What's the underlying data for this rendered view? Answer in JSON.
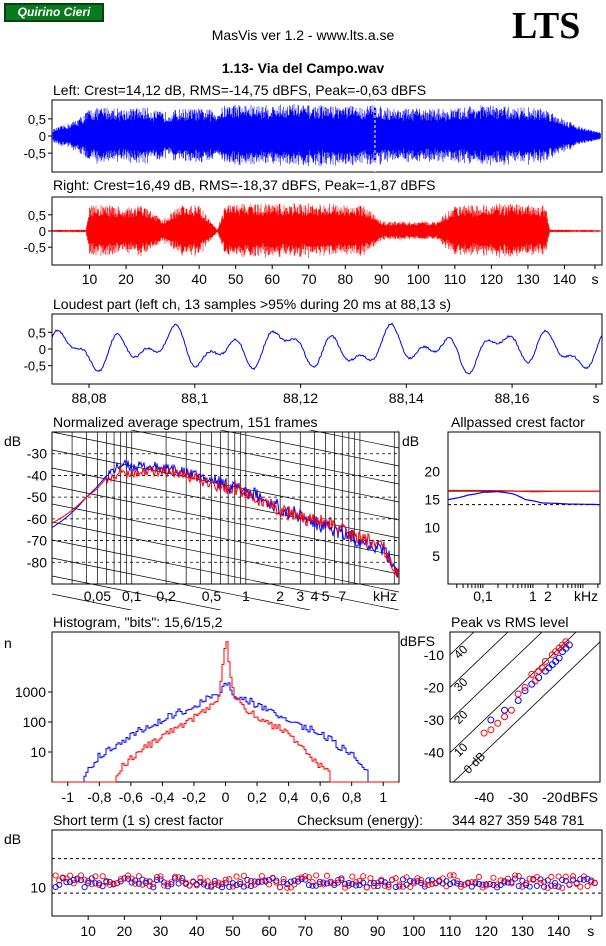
{
  "header": {
    "badge": "Quirino Cieri",
    "app_title": "MasVis ver 1.2 - www.lts.a.se",
    "logo": "LTS",
    "track": "1.13- Via del Campo.wav"
  },
  "colors": {
    "left": "#0000ff",
    "right": "#ff0000",
    "frame": "#000000"
  },
  "chart_data": [
    {
      "id": "left_waveform",
      "type": "area",
      "title": "Left: Crest=14,12 dB, RMS=-14,75 dBFS, Peak=-0,63 dBFS",
      "yticks": [
        "0,5",
        "0",
        "-0,5"
      ],
      "ylim": [
        -1,
        1
      ],
      "envelope_seconds": [
        0,
        5,
        8,
        10,
        15,
        20,
        25,
        30,
        35,
        40,
        45,
        47,
        50,
        55,
        60,
        65,
        70,
        75,
        80,
        85,
        88,
        90,
        95,
        100,
        105,
        110,
        115,
        120,
        125,
        130,
        135,
        140,
        145,
        150
      ],
      "envelope_peak": [
        0.2,
        0.4,
        0.6,
        0.8,
        0.85,
        0.8,
        0.85,
        0.7,
        0.8,
        0.8,
        0.75,
        0.9,
        0.95,
        0.9,
        0.9,
        0.95,
        0.9,
        0.9,
        0.9,
        0.85,
        0.95,
        0.85,
        0.8,
        0.8,
        0.8,
        0.8,
        0.9,
        0.9,
        0.85,
        0.85,
        0.8,
        0.5,
        0.25,
        0.1
      ],
      "series": [
        {
          "name": "Left",
          "color": "#0000ff"
        }
      ],
      "marker_at_s": 88.13
    },
    {
      "id": "right_waveform",
      "type": "area",
      "title": "Right: Crest=16,49 dB, RMS=-18,37 dBFS, Peak=-1,87 dBFS",
      "yticks": [
        "0,5",
        "0",
        "-0,5"
      ],
      "ylim": [
        -1,
        1
      ],
      "xticks": [
        "10",
        "20",
        "30",
        "40",
        "50",
        "60",
        "70",
        "80",
        "90",
        "100",
        "110",
        "120",
        "130",
        "140",
        "s"
      ],
      "envelope_seconds": [
        0,
        9,
        10,
        15,
        20,
        25,
        30,
        35,
        40,
        45,
        47,
        50,
        55,
        60,
        65,
        70,
        75,
        80,
        85,
        90,
        95,
        100,
        105,
        110,
        115,
        120,
        125,
        130,
        135,
        136,
        150
      ],
      "envelope_peak": [
        0.04,
        0.04,
        0.8,
        0.8,
        0.75,
        0.8,
        0.35,
        0.8,
        0.8,
        0.04,
        0.8,
        0.85,
        0.85,
        0.85,
        0.85,
        0.85,
        0.85,
        0.8,
        0.8,
        0.3,
        0.3,
        0.3,
        0.3,
        0.8,
        0.8,
        0.85,
        0.85,
        0.8,
        0.8,
        0.05,
        0.03
      ],
      "series": [
        {
          "name": "Right",
          "color": "#ff0000"
        }
      ]
    },
    {
      "id": "loudest_part",
      "type": "line",
      "title": "Loudest part (left  ch, 13 samples >95% during 20 ms at 88,13 s)",
      "yticks": [
        "0,5",
        "0",
        "-0,5"
      ],
      "ylim": [
        -1,
        1
      ],
      "xticks": [
        "88,08",
        "88,1",
        "88,12",
        "88,14",
        "88,16",
        "s"
      ],
      "xlim": [
        88.073,
        88.177
      ],
      "series": [
        {
          "name": "Left",
          "color": "#0000ff"
        }
      ]
    },
    {
      "id": "spectrum",
      "type": "line",
      "title": "Normalized average spectrum, 151 frames",
      "ylabel": "dB",
      "yticks": [
        "-30",
        "-40",
        "-50",
        "-60",
        "-70",
        "-80"
      ],
      "ylim": [
        -90,
        -20
      ],
      "xticks": [
        "0,05",
        "0,1",
        "0,2",
        "0,5",
        "1",
        "2",
        "3",
        "4",
        "5",
        "7",
        "kHz"
      ],
      "xlim_khz": [
        0.02,
        22
      ],
      "left_db": [
        [
          0.02,
          -64
        ],
        [
          0.03,
          -57
        ],
        [
          0.04,
          -50
        ],
        [
          0.05,
          -45
        ],
        [
          0.06,
          -40
        ],
        [
          0.08,
          -35
        ],
        [
          0.1,
          -36
        ],
        [
          0.15,
          -36
        ],
        [
          0.2,
          -37
        ],
        [
          0.3,
          -39
        ],
        [
          0.4,
          -41
        ],
        [
          0.5,
          -42
        ],
        [
          0.7,
          -45
        ],
        [
          1,
          -47
        ],
        [
          1.5,
          -52
        ],
        [
          2,
          -55
        ],
        [
          3,
          -59
        ],
        [
          4,
          -62
        ],
        [
          5,
          -64
        ],
        [
          7,
          -67
        ],
        [
          10,
          -70
        ],
        [
          15,
          -73
        ],
        [
          22,
          -85
        ]
      ],
      "right_db": [
        [
          0.02,
          -62
        ],
        [
          0.03,
          -56
        ],
        [
          0.04,
          -50
        ],
        [
          0.05,
          -46
        ],
        [
          0.06,
          -41
        ],
        [
          0.08,
          -38
        ],
        [
          0.1,
          -39
        ],
        [
          0.15,
          -38
        ],
        [
          0.2,
          -38
        ],
        [
          0.3,
          -40
        ],
        [
          0.4,
          -42
        ],
        [
          0.5,
          -44
        ],
        [
          0.7,
          -46
        ],
        [
          1,
          -48
        ],
        [
          1.5,
          -53
        ],
        [
          2,
          -56
        ],
        [
          3,
          -60
        ],
        [
          4,
          -61
        ],
        [
          5,
          -62
        ],
        [
          7,
          -65
        ],
        [
          10,
          -69
        ],
        [
          15,
          -71
        ],
        [
          22,
          -87
        ]
      ]
    },
    {
      "id": "allpassed_crest",
      "type": "line",
      "title": "Allpassed crest factor",
      "ylabel": "dB",
      "yticks": [
        "20",
        "15",
        "10",
        "5"
      ],
      "ylim": [
        0,
        27
      ],
      "xticks": [
        "0,1",
        "1",
        "2",
        "kHz"
      ],
      "xlim_khz": [
        0.02,
        22
      ],
      "dashed_reference_db": 14.1,
      "solid_reference_db": 16.5,
      "left_db": [
        [
          0.02,
          15
        ],
        [
          0.05,
          15.8
        ],
        [
          0.1,
          16.3
        ],
        [
          0.2,
          16.4
        ],
        [
          0.4,
          16
        ],
        [
          0.7,
          15
        ],
        [
          1.5,
          14.4
        ],
        [
          5,
          14.2
        ],
        [
          22,
          14.1
        ]
      ],
      "right_db": [
        [
          0.02,
          16.6
        ],
        [
          0.1,
          16.6
        ],
        [
          0.5,
          16.5
        ],
        [
          1,
          16.4
        ],
        [
          3,
          16.5
        ],
        [
          22,
          16.5
        ]
      ]
    },
    {
      "id": "histogram",
      "type": "line",
      "title": "Histogram, \"bits\": 15,6/15,2",
      "ylabel": "n",
      "yscale": "log",
      "yticks": [
        "1000",
        "100",
        "10"
      ],
      "ylim": [
        1,
        100000
      ],
      "xticks": [
        "-1",
        "-0,8",
        "-0,6",
        "-0,4",
        "-0,2",
        "0",
        "0,2",
        "0,4",
        "0,6",
        "0,8",
        "1"
      ],
      "xlim": [
        -1.1,
        1.1
      ],
      "left_counts": [
        [
          -0.9,
          2
        ],
        [
          -0.8,
          8
        ],
        [
          -0.6,
          40
        ],
        [
          -0.4,
          120
        ],
        [
          -0.2,
          350
        ],
        [
          -0.05,
          900
        ],
        [
          0,
          2000
        ],
        [
          0.05,
          900
        ],
        [
          0.2,
          350
        ],
        [
          0.4,
          120
        ],
        [
          0.6,
          40
        ],
        [
          0.8,
          8
        ],
        [
          0.9,
          2
        ]
      ],
      "right_counts": [
        [
          -0.7,
          2
        ],
        [
          -0.6,
          6
        ],
        [
          -0.4,
          40
        ],
        [
          -0.2,
          140
        ],
        [
          -0.05,
          600
        ],
        [
          0,
          50000
        ],
        [
          0.05,
          600
        ],
        [
          0.2,
          140
        ],
        [
          0.4,
          40
        ],
        [
          0.55,
          6
        ],
        [
          0.65,
          2
        ]
      ]
    },
    {
      "id": "peak_vs_rms",
      "type": "scatter",
      "title": "Peak vs RMS level",
      "ylabel": "dBFS",
      "xlabel": "dBFS",
      "yticks": [
        "-10",
        "-20",
        "-30",
        "-40"
      ],
      "ylim": [
        -49,
        -3
      ],
      "xticks": [
        "-40",
        "-30",
        "-20"
      ],
      "xlim": [
        -50,
        -6
      ],
      "diagonal_labels": [
        "40",
        "30",
        "20",
        "10",
        "0 dB"
      ],
      "left_points": [
        [
          -38,
          -30
        ],
        [
          -34,
          -27
        ],
        [
          -30,
          -24
        ],
        [
          -28,
          -21
        ],
        [
          -26,
          -19
        ],
        [
          -24,
          -17
        ],
        [
          -22,
          -15
        ],
        [
          -20,
          -13
        ],
        [
          -18,
          -11
        ],
        [
          -17,
          -9
        ],
        [
          -16,
          -8
        ],
        [
          -15,
          -7
        ],
        [
          -21,
          -14
        ],
        [
          -19,
          -12
        ]
      ],
      "right_points": [
        [
          -40,
          -34
        ],
        [
          -38,
          -33
        ],
        [
          -36,
          -31
        ],
        [
          -34,
          -29
        ],
        [
          -32,
          -27
        ],
        [
          -30,
          -22
        ],
        [
          -28,
          -20
        ],
        [
          -26,
          -16
        ],
        [
          -24,
          -15
        ],
        [
          -22,
          -12
        ],
        [
          -20,
          -10
        ],
        [
          -19,
          -9
        ],
        [
          -18,
          -8
        ],
        [
          -17,
          -7
        ],
        [
          -16,
          -6
        ],
        [
          -25,
          -18
        ],
        [
          -23,
          -14
        ]
      ]
    },
    {
      "id": "short_term_crest",
      "type": "scatter",
      "title": "Short term (1 s) crest factor",
      "ylabel": "dB",
      "yticks": [
        "10"
      ],
      "ylim": [
        5,
        20
      ],
      "dashed_lines_db": [
        15,
        9
      ],
      "xticks": [
        "10",
        "20",
        "30",
        "40",
        "50",
        "60",
        "70",
        "80",
        "90",
        "100",
        "110",
        "120",
        "130",
        "140",
        "s"
      ],
      "xlim": [
        0,
        152
      ],
      "checksum_label": "Checksum (energy):",
      "checksum_value": "344 827 359 548 781"
    }
  ]
}
